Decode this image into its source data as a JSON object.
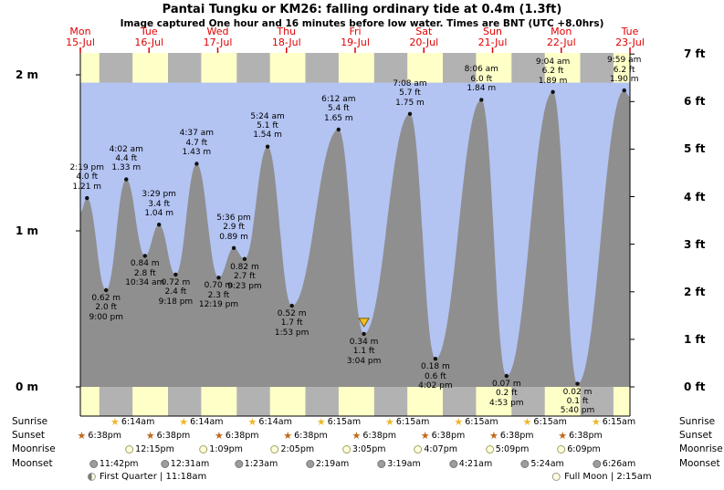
{
  "title": "Pantai Tungku or KM26: falling  ordinary tide at 0.4m (1.3ft)",
  "subtitle": "Image captured One hour and 16 minutes before low water. Times are BNT (UTC +8.0hrs)",
  "colors": {
    "day_band": "#ffffc8",
    "night_band": "#b2b2b2",
    "tide_fill": "#8f8f8f",
    "water": "#b3c3f2",
    "date_color": "#e00000",
    "marker": "#f0c020"
  },
  "icons": {
    "sunrise": "star",
    "sunset": "star",
    "moonrise": "circle",
    "moonset": "circle",
    "current_marker": "triangle-down",
    "first_quarter": "half-moon",
    "full_moon": "circle"
  },
  "days": [
    {
      "name": "Mon",
      "date": "15-Jul"
    },
    {
      "name": "Tue",
      "date": "16-Jul"
    },
    {
      "name": "Wed",
      "date": "17-Jul"
    },
    {
      "name": "Thu",
      "date": "18-Jul"
    },
    {
      "name": "Fri",
      "date": "19-Jul"
    },
    {
      "name": "Sat",
      "date": "20-Jul"
    },
    {
      "name": "Sun",
      "date": "21-Jul"
    },
    {
      "name": "Mon",
      "date": "22-Jul"
    },
    {
      "name": "Tue",
      "date": "23-Jul"
    }
  ],
  "y_axis_left": {
    "labels": [
      "2 m",
      "1 m",
      "0 m"
    ],
    "values_m": [
      2,
      1,
      0
    ]
  },
  "y_axis_right": {
    "labels": [
      "7 ft",
      "6 ft",
      "5 ft",
      "4 ft",
      "3 ft",
      "2 ft",
      "1 ft",
      "0 ft"
    ],
    "values_ft": [
      7,
      6,
      5,
      4,
      3,
      2,
      1,
      0
    ]
  },
  "chart_data": {
    "type": "area",
    "title": "Tide height curve, Mon 15-Jul 12:00 to Tue 23-Jul 12:00 (BNT)",
    "y_unit_left": "m",
    "y_unit_right": "ft",
    "ylim_m": [
      -0.19,
      2.14
    ],
    "water_top_m": 1.95,
    "edge_m": [
      1.12,
      1.86
    ],
    "extremes": [
      {
        "d": 0,
        "time": "2:19 pm",
        "m": 1.21,
        "ft": 4.0,
        "type": "high"
      },
      {
        "d": 0,
        "time": "9:00 pm",
        "m": 0.62,
        "ft": 2.0,
        "type": "low"
      },
      {
        "d": 1,
        "time": "4:02 am",
        "m": 1.33,
        "ft": 4.4,
        "type": "high"
      },
      {
        "d": 1,
        "time": "10:34 am",
        "m": 0.84,
        "ft": 2.8,
        "type": "low"
      },
      {
        "d": 1,
        "time": "3:29 pm",
        "m": 1.04,
        "ft": 3.4,
        "type": "high"
      },
      {
        "d": 1,
        "time": "9:18 pm",
        "m": 0.72,
        "ft": 2.4,
        "type": "low"
      },
      {
        "d": 2,
        "time": "4:37 am",
        "m": 1.43,
        "ft": 4.7,
        "type": "high"
      },
      {
        "d": 2,
        "time": "12:19 pm",
        "m": 0.7,
        "ft": 2.3,
        "type": "low"
      },
      {
        "d": 2,
        "time": "5:36 pm",
        "m": 0.89,
        "ft": 2.9,
        "type": "high"
      },
      {
        "d": 2,
        "time": "9:23 pm",
        "m": 0.82,
        "ft": 2.7,
        "type": "low"
      },
      {
        "d": 3,
        "time": "5:24 am",
        "m": 1.54,
        "ft": 5.1,
        "type": "high"
      },
      {
        "d": 3,
        "time": "1:53 pm",
        "m": 0.52,
        "ft": 1.7,
        "type": "low"
      },
      {
        "d": 4,
        "time": "6:12 am",
        "m": 1.65,
        "ft": 5.4,
        "type": "high"
      },
      {
        "d": 4,
        "time": "3:04 pm",
        "m": 0.34,
        "ft": 1.1,
        "type": "low"
      },
      {
        "d": 5,
        "time": "7:08 am",
        "m": 1.75,
        "ft": 5.7,
        "type": "high"
      },
      {
        "d": 5,
        "time": "4:02 pm",
        "m": 0.18,
        "ft": 0.6,
        "type": "low"
      },
      {
        "d": 6,
        "time": "8:06 am",
        "m": 1.84,
        "ft": 6.0,
        "type": "high"
      },
      {
        "d": 6,
        "time": "4:53 pm",
        "m": 0.07,
        "ft": 0.2,
        "type": "low"
      },
      {
        "d": 7,
        "time": "9:04 am",
        "m": 1.89,
        "ft": 6.2,
        "type": "high"
      },
      {
        "d": 7,
        "time": "5:40 pm",
        "m": 0.02,
        "ft": 0.1,
        "type": "low"
      },
      {
        "d": 8,
        "time": "9:59 am",
        "m": 1.9,
        "ft": 6.2,
        "type": "high"
      }
    ],
    "marker": {
      "on_extreme": 13,
      "symbol": "triangle-down"
    }
  },
  "astro": {
    "row_labels": [
      "Sunrise",
      "Sunset",
      "Moonrise",
      "Moonset"
    ],
    "sunrise": [
      {
        "d": 1,
        "time": "6:14am"
      },
      {
        "d": 2,
        "time": "6:14am"
      },
      {
        "d": 3,
        "time": "6:14am"
      },
      {
        "d": 4,
        "time": "6:15am"
      },
      {
        "d": 5,
        "time": "6:15am"
      },
      {
        "d": 6,
        "time": "6:15am"
      },
      {
        "d": 7,
        "time": "6:15am"
      },
      {
        "d": 8,
        "time": "6:15am"
      }
    ],
    "sunset": [
      {
        "d": 0,
        "time": "6:38pm"
      },
      {
        "d": 1,
        "time": "6:38pm"
      },
      {
        "d": 2,
        "time": "6:38pm"
      },
      {
        "d": 3,
        "time": "6:38pm"
      },
      {
        "d": 4,
        "time": "6:38pm"
      },
      {
        "d": 5,
        "time": "6:38pm"
      },
      {
        "d": 6,
        "time": "6:38pm"
      },
      {
        "d": 7,
        "time": "6:38pm"
      }
    ],
    "moonrise": [
      {
        "d": 1,
        "time": "12:15pm"
      },
      {
        "d": 2,
        "time": "1:09pm"
      },
      {
        "d": 3,
        "time": "2:05pm"
      },
      {
        "d": 4,
        "time": "3:05pm"
      },
      {
        "d": 5,
        "time": "4:07pm"
      },
      {
        "d": 6,
        "time": "5:09pm"
      },
      {
        "d": 7,
        "time": "6:09pm"
      }
    ],
    "moonset": [
      {
        "d": 0,
        "time": "11:42pm"
      },
      {
        "d": 2,
        "time": "12:31am"
      },
      {
        "d": 3,
        "time": "1:23am"
      },
      {
        "d": 4,
        "time": "2:19am"
      },
      {
        "d": 5,
        "time": "3:19am"
      },
      {
        "d": 6,
        "time": "4:21am"
      },
      {
        "d": 7,
        "time": "5:24am"
      },
      {
        "d": 8,
        "time": "6:26am"
      }
    ],
    "notes": [
      {
        "label": "First Quarter",
        "time": "11:18am",
        "d": 1,
        "icon": "first-quarter-moon"
      },
      {
        "label": "Full Moon",
        "time": "2:15am",
        "d": 8,
        "icon": "full-moon"
      }
    ]
  }
}
